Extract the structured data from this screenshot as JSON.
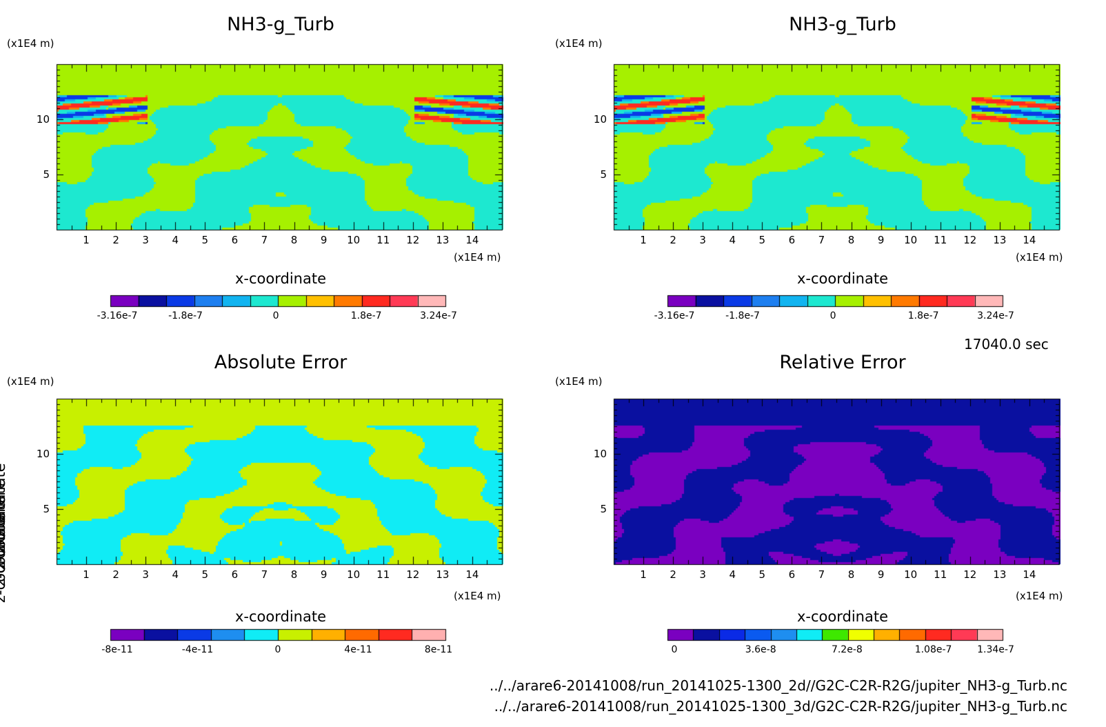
{
  "chart_data": [
    {
      "type": "heatmap",
      "title": "NH3-g_Turb",
      "xlabel": "x-coordinate",
      "ylabel": "z-coordinate",
      "x_unit": "(x1E4 m)",
      "y_unit": "(x1E4 m)",
      "x_ticks": [
        "1",
        "2",
        "3",
        "4",
        "5",
        "6",
        "7",
        "8",
        "9",
        "10",
        "11",
        "12",
        "13",
        "14"
      ],
      "y_ticks": [
        "5",
        "10"
      ],
      "xlim": [
        0,
        15
      ],
      "ylim": [
        0,
        15
      ],
      "colorbar": {
        "colors": [
          "#7a00c0",
          "#0a10a0",
          "#0a3ae6",
          "#1e7ff0",
          "#12b4f0",
          "#1de8d0",
          "#a6f000",
          "#ffc000",
          "#ff7a00",
          "#ff2a20",
          "#ff3a55",
          "#ffb8b8"
        ],
        "tick_labels": [
          "-3.16e-7",
          "-1.8e-7",
          "0",
          "1.8e-7",
          "3.24e-7"
        ],
        "tick_values": [
          -3.16e-07,
          -1.8e-07,
          0,
          1.8e-07,
          3.24e-07
        ]
      }
    },
    {
      "type": "heatmap",
      "title": "NH3-g_Turb",
      "xlabel": "x-coordinate",
      "ylabel": "z-coordinate",
      "x_unit": "(x1E4 m)",
      "y_unit": "(x1E4 m)",
      "x_ticks": [
        "1",
        "2",
        "3",
        "4",
        "5",
        "6",
        "7",
        "8",
        "9",
        "10",
        "11",
        "12",
        "13",
        "14"
      ],
      "y_ticks": [
        "5",
        "10"
      ],
      "xlim": [
        0,
        15
      ],
      "ylim": [
        0,
        15
      ],
      "colorbar": {
        "colors": [
          "#7a00c0",
          "#0a10a0",
          "#0a3ae6",
          "#1e7ff0",
          "#12b4f0",
          "#1de8d0",
          "#a6f000",
          "#ffc000",
          "#ff7a00",
          "#ff2a20",
          "#ff3a55",
          "#ffb8b8"
        ],
        "tick_labels": [
          "-3.16e-7",
          "-1.8e-7",
          "0",
          "1.8e-7",
          "3.24e-7"
        ],
        "tick_values": [
          -3.16e-07,
          -1.8e-07,
          0,
          1.8e-07,
          3.24e-07
        ]
      }
    },
    {
      "type": "heatmap",
      "title": "Absolute Error",
      "xlabel": "x-coordinate",
      "ylabel": "z-coordinate",
      "x_unit": "(x1E4 m)",
      "y_unit": "(x1E4 m)",
      "x_ticks": [
        "1",
        "2",
        "3",
        "4",
        "5",
        "6",
        "7",
        "8",
        "9",
        "10",
        "11",
        "12",
        "13",
        "14"
      ],
      "y_ticks": [
        "5",
        "10"
      ],
      "xlim": [
        0,
        15
      ],
      "ylim": [
        0,
        15
      ],
      "colorbar": {
        "colors": [
          "#7a00c0",
          "#0a10a0",
          "#0a3ae6",
          "#1e8ef0",
          "#10ecf5",
          "#c8f000",
          "#ffb000",
          "#ff6a00",
          "#ff2a20",
          "#ffb0b0"
        ],
        "tick_labels": [
          "-8e-11",
          "-4e-11",
          "0",
          "4e-11",
          "8e-11"
        ],
        "tick_values": [
          -8e-11,
          -4e-11,
          0,
          4e-11,
          8e-11
        ]
      }
    },
    {
      "type": "heatmap",
      "title": "Relative Error",
      "xlabel": "x-coordinate",
      "ylabel": "z-coordinate",
      "x_unit": "(x1E4 m)",
      "y_unit": "(x1E4 m)",
      "x_ticks": [
        "1",
        "2",
        "3",
        "4",
        "5",
        "6",
        "7",
        "8",
        "9",
        "10",
        "11",
        "12",
        "13",
        "14"
      ],
      "y_ticks": [
        "5",
        "10"
      ],
      "xlim": [
        0,
        15
      ],
      "ylim": [
        0,
        15
      ],
      "colorbar": {
        "colors": [
          "#7a00c0",
          "#0a10a0",
          "#0a2ae6",
          "#0a5af0",
          "#1e8ef0",
          "#10ecf5",
          "#3ee800",
          "#f0ff00",
          "#ffb000",
          "#ff6a00",
          "#ff2a20",
          "#ff3a55",
          "#ffb8b8"
        ],
        "tick_labels": [
          "0",
          "3.6e-8",
          "7.2e-8",
          "1.08e-7",
          "1.34e-7"
        ],
        "tick_values": [
          0,
          3.6e-08,
          7.2e-08,
          1.08e-07,
          1.34e-07
        ]
      }
    }
  ],
  "timestamp": "17040.0 sec",
  "footer_paths": [
    "../../arare6-20141008/run_20141025-1300_2d//G2C-C2R-R2G/jupiter_NH3-g_Turb.nc",
    "../../arare6-20141008/run_20141025-1300_3d/G2C-C2R-R2G/jupiter_NH3-g_Turb.nc"
  ]
}
